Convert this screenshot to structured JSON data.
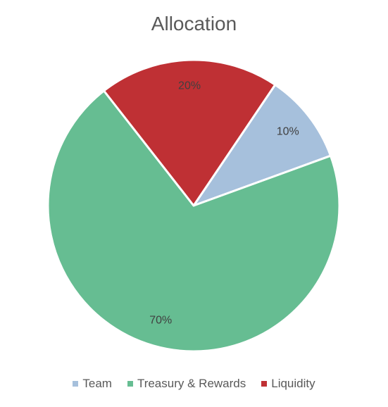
{
  "chart_data": {
    "type": "pie",
    "title": "Allocation",
    "slices": [
      {
        "label": "Team",
        "value": 10,
        "display": "10%",
        "color": "#a6c0dc"
      },
      {
        "label": "Treasury & Rewards",
        "value": 70,
        "display": "70%",
        "color": "#66bd92"
      },
      {
        "label": "Liquidity",
        "value": 20,
        "display": "20%",
        "color": "#bf3034"
      }
    ],
    "legend_position": "bottom"
  }
}
